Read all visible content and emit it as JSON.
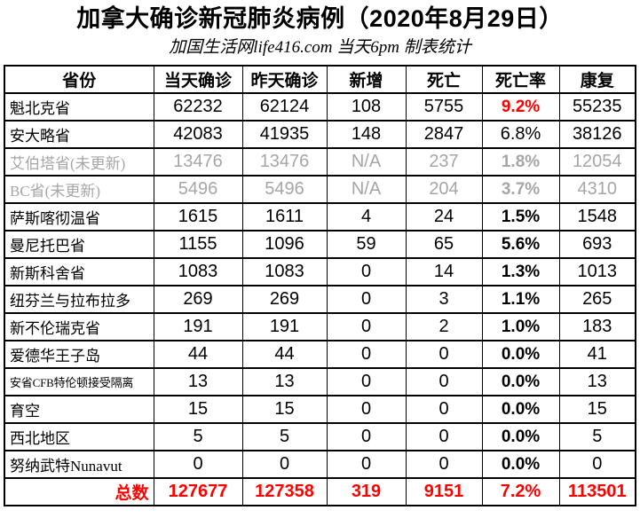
{
  "page": {
    "title": "加拿大确诊新冠肺炎病例（2020年8月29日）",
    "subtitle": "加国生活网life416.com 当天6pm 制表统计"
  },
  "colors": {
    "title_text": "#000000",
    "highlight_red": "#ff0000",
    "muted_gray": "#a6a6a6",
    "border": "#000000",
    "background": "#ffffff"
  },
  "chart_data": {
    "type": "table",
    "title": "加拿大确诊新冠肺炎病例（2020年8月29日）",
    "subtitle": "加国生活网life416.com 当天6pm 制表统计",
    "columns": [
      "省份",
      "当天确诊",
      "昨天确诊",
      "新增",
      "死亡",
      "死亡率",
      "康复"
    ],
    "rows": [
      {
        "province": "魁北克省",
        "today": 62232,
        "yesterday": 62124,
        "new": 108,
        "deaths": 5755,
        "rate": "9.2%",
        "recovered": 55235,
        "muted": false,
        "small_label": false,
        "rate_red": true,
        "rate_bold": true
      },
      {
        "province": "安大略省",
        "today": 42083,
        "yesterday": 41935,
        "new": 148,
        "deaths": 2847,
        "rate": "6.8%",
        "recovered": 38126,
        "muted": false,
        "small_label": false,
        "rate_red": false,
        "rate_bold": false
      },
      {
        "province": "艾伯塔省(未更新)",
        "today": 13476,
        "yesterday": 13476,
        "new": "N/A",
        "deaths": 237,
        "rate": "1.8%",
        "recovered": 12054,
        "muted": true,
        "small_label": false,
        "rate_red": false,
        "rate_bold": true
      },
      {
        "province": "BC省(未更新)",
        "today": 5496,
        "yesterday": 5496,
        "new": "N/A",
        "deaths": 204,
        "rate": "3.7%",
        "recovered": 4310,
        "muted": true,
        "small_label": false,
        "rate_red": false,
        "rate_bold": true
      },
      {
        "province": "萨斯喀彻温省",
        "today": 1615,
        "yesterday": 1611,
        "new": 4,
        "deaths": 24,
        "rate": "1.5%",
        "recovered": 1548,
        "muted": false,
        "small_label": false,
        "rate_red": false,
        "rate_bold": true
      },
      {
        "province": "曼尼托巴省",
        "today": 1155,
        "yesterday": 1096,
        "new": 59,
        "deaths": 65,
        "rate": "5.6%",
        "recovered": 693,
        "muted": false,
        "small_label": false,
        "rate_red": false,
        "rate_bold": true
      },
      {
        "province": "新斯科舍省",
        "today": 1083,
        "yesterday": 1083,
        "new": 0,
        "deaths": 14,
        "rate": "1.3%",
        "recovered": 1013,
        "muted": false,
        "small_label": false,
        "rate_red": false,
        "rate_bold": true
      },
      {
        "province": "纽芬兰与拉布拉多",
        "today": 269,
        "yesterday": 269,
        "new": 0,
        "deaths": 3,
        "rate": "1.1%",
        "recovered": 265,
        "muted": false,
        "small_label": false,
        "rate_red": false,
        "rate_bold": true
      },
      {
        "province": "新不伦瑞克省",
        "today": 191,
        "yesterday": 191,
        "new": 0,
        "deaths": 2,
        "rate": "1.0%",
        "recovered": 183,
        "muted": false,
        "small_label": false,
        "rate_red": false,
        "rate_bold": true
      },
      {
        "province": "爱德华王子岛",
        "today": 44,
        "yesterday": 44,
        "new": 0,
        "deaths": 0,
        "rate": "0.0%",
        "recovered": 41,
        "muted": false,
        "small_label": false,
        "rate_red": false,
        "rate_bold": true
      },
      {
        "province": "安省CFB特伦顿接受隔离",
        "today": 13,
        "yesterday": 13,
        "new": 0,
        "deaths": 0,
        "rate": "0.0%",
        "recovered": 13,
        "muted": false,
        "small_label": true,
        "rate_red": false,
        "rate_bold": true
      },
      {
        "province": "育空",
        "today": 15,
        "yesterday": 15,
        "new": 0,
        "deaths": 0,
        "rate": "0.0%",
        "recovered": 15,
        "muted": false,
        "small_label": false,
        "rate_red": false,
        "rate_bold": true
      },
      {
        "province": "西北地区",
        "today": 5,
        "yesterday": 5,
        "new": 0,
        "deaths": 0,
        "rate": "0.0%",
        "recovered": 5,
        "muted": false,
        "small_label": false,
        "rate_red": false,
        "rate_bold": true
      },
      {
        "province": "努纳武特Nunavut",
        "today": 0,
        "yesterday": 0,
        "new": 0,
        "deaths": 0,
        "rate": "0.0%",
        "recovered": 0,
        "muted": false,
        "small_label": false,
        "rate_red": false,
        "rate_bold": true
      }
    ],
    "total": {
      "label": "总数",
      "today": 127677,
      "yesterday": 127358,
      "new": 319,
      "deaths": 9151,
      "rate": "7.2%",
      "recovered": 113501
    }
  }
}
